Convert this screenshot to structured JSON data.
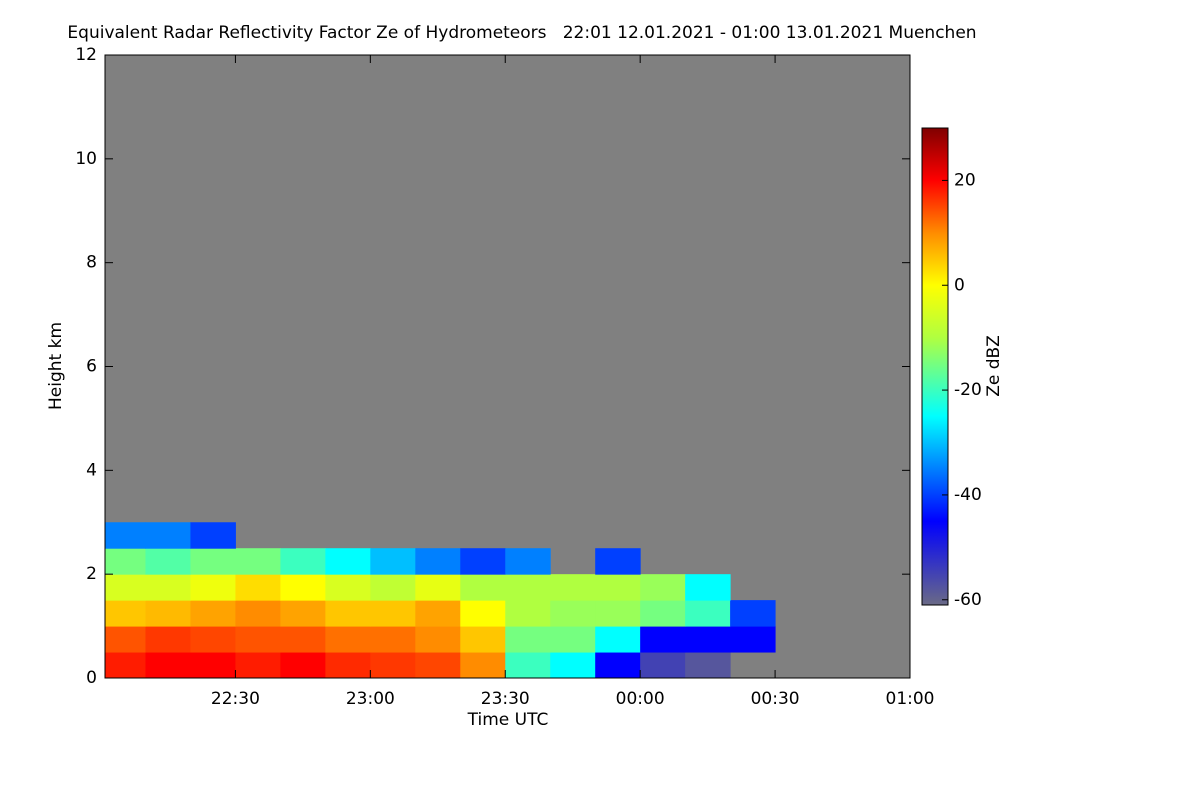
{
  "chart_data": {
    "type": "heatmap",
    "title": "Equivalent Radar Reflectivity Factor Ze of Hydrometeors   22:01 12.01.2021 - 01:00 13.01.2021 Muenchen",
    "x_label": "Time UTC",
    "y_label": "Height km",
    "colorbar_label": "Ze dBZ",
    "x_bins": [
      1,
      10,
      20,
      30,
      40,
      50,
      60,
      70,
      80,
      90,
      100,
      110,
      120,
      130,
      140,
      150,
      160,
      170,
      180
    ],
    "y_bins": [
      0,
      0.5,
      1,
      1.5,
      2,
      2.5,
      3
    ],
    "z": [
      [
        18,
        20,
        20,
        18,
        20,
        17,
        16,
        15,
        10,
        -20,
        -25,
        -45,
        -55,
        -58,
        null,
        null,
        null,
        null
      ],
      [
        14,
        16,
        15,
        14,
        14,
        12,
        12,
        10,
        5,
        -15,
        -15,
        -25,
        -45,
        -45,
        -45,
        null,
        null,
        null
      ],
      [
        5,
        6,
        8,
        10,
        8,
        5,
        5,
        8,
        0,
        -10,
        -12,
        -12,
        -15,
        -20,
        -40,
        null,
        null,
        null
      ],
      [
        -5,
        -5,
        -2,
        3,
        0,
        -5,
        -8,
        -3,
        -10,
        -10,
        -10,
        -10,
        -12,
        -25,
        null,
        null,
        null,
        null
      ],
      [
        -15,
        -18,
        -15,
        -15,
        -20,
        -25,
        -30,
        -35,
        -40,
        -35,
        null,
        -40,
        null,
        null,
        null,
        null,
        null,
        null
      ],
      [
        -35,
        -35,
        -40,
        null,
        null,
        null,
        null,
        null,
        null,
        null,
        null,
        null,
        null,
        null,
        null,
        null,
        null,
        null
      ]
    ],
    "xlim": [
      1,
      180
    ],
    "xticks": [
      {
        "value": 30,
        "label": "22:30"
      },
      {
        "value": 60,
        "label": "23:00"
      },
      {
        "value": 90,
        "label": "23:30"
      },
      {
        "value": 120,
        "label": "00:00"
      },
      {
        "value": 150,
        "label": "00:30"
      },
      {
        "value": 180,
        "label": "01:00"
      }
    ],
    "ylim": [
      0,
      12
    ],
    "yticks": [
      0,
      2,
      4,
      6,
      8,
      10,
      12
    ],
    "clim": [
      -61,
      30
    ],
    "cticks": [
      -60,
      -40,
      -20,
      0,
      20
    ],
    "colormap": [
      {
        "value": -61,
        "color": "#6a6a86"
      },
      {
        "value": -45,
        "color": "#0000ff"
      },
      {
        "value": -25,
        "color": "#00ffff"
      },
      {
        "value": -10,
        "color": "#b0ff40"
      },
      {
        "value": 0,
        "color": "#ffff00"
      },
      {
        "value": 10,
        "color": "#ff8c00"
      },
      {
        "value": 20,
        "color": "#ff0000"
      },
      {
        "value": 30,
        "color": "#800000"
      }
    ],
    "background": "#808080"
  }
}
